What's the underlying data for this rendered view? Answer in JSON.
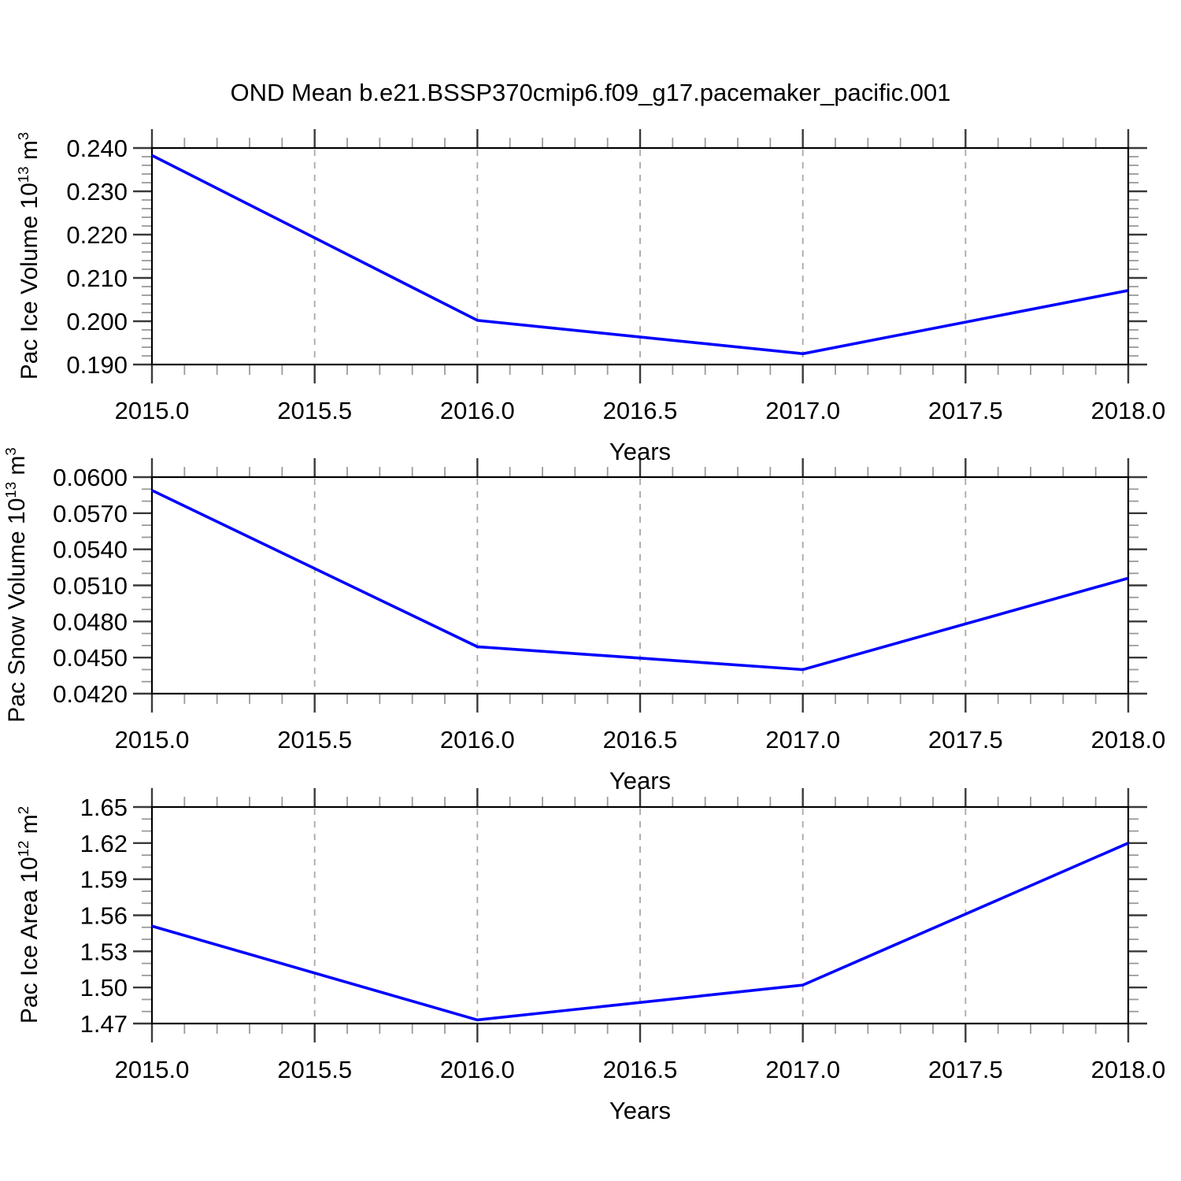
{
  "title": "OND Mean b.e21.BSSP370cmip6.f09_g17.pacemaker_pacific.001",
  "line_color": "#0000ff",
  "chart_data": [
    {
      "type": "line",
      "panel": 1,
      "ylabel": {
        "text": "Pac Ice Volume 10",
        "exp": "13",
        "unit": " m",
        "unit_exp": "3"
      },
      "xlabel": "Years",
      "x": [
        2015.0,
        2016.0,
        2017.0,
        2018.0
      ],
      "values": [
        0.2383,
        0.2002,
        0.1925,
        0.2071
      ],
      "xlim": [
        2015.0,
        2018.0
      ],
      "ylim": [
        0.19,
        0.24
      ],
      "xticks": [
        2015.0,
        2015.5,
        2016.0,
        2016.5,
        2017.0,
        2017.5,
        2018.0
      ],
      "xtick_labels": [
        "2015.0",
        "2015.5",
        "2016.0",
        "2016.5",
        "2017.0",
        "2017.5",
        "2018.0"
      ],
      "yticks": [
        0.19,
        0.2,
        0.21,
        0.22,
        0.23,
        0.24
      ],
      "ytick_labels": [
        "0.190",
        "0.200",
        "0.210",
        "0.220",
        "0.230",
        "0.240"
      ],
      "x_minor_step": 0.1,
      "y_minor_step": 0.002,
      "grid": "vertical-dashed-interior-majors",
      "legend": "none"
    },
    {
      "type": "line",
      "panel": 2,
      "ylabel": {
        "text": "Pac Snow Volume 10",
        "exp": "13",
        "unit": " m",
        "unit_exp": "3"
      },
      "xlabel": "Years",
      "x": [
        2015.0,
        2016.0,
        2017.0,
        2018.0
      ],
      "values": [
        0.0589,
        0.0459,
        0.044,
        0.0516
      ],
      "xlim": [
        2015.0,
        2018.0
      ],
      "ylim": [
        0.042,
        0.06
      ],
      "xticks": [
        2015.0,
        2015.5,
        2016.0,
        2016.5,
        2017.0,
        2017.5,
        2018.0
      ],
      "xtick_labels": [
        "2015.0",
        "2015.5",
        "2016.0",
        "2016.5",
        "2017.0",
        "2017.5",
        "2018.0"
      ],
      "yticks": [
        0.042,
        0.045,
        0.048,
        0.051,
        0.054,
        0.057,
        0.06
      ],
      "ytick_labels": [
        "0.0420",
        "0.0450",
        "0.0480",
        "0.0510",
        "0.0540",
        "0.0570",
        "0.0600"
      ],
      "x_minor_step": 0.1,
      "y_minor_step": 0.001,
      "grid": "vertical-dashed-interior-majors",
      "legend": "none"
    },
    {
      "type": "line",
      "panel": 3,
      "ylabel": {
        "text": "Pac Ice Area 10",
        "exp": "12",
        "unit": " m",
        "unit_exp": "2"
      },
      "xlabel": "Years",
      "x": [
        2015.0,
        2016.0,
        2017.0,
        2018.0
      ],
      "values": [
        1.551,
        1.473,
        1.502,
        1.62
      ],
      "xlim": [
        2015.0,
        2018.0
      ],
      "ylim": [
        1.47,
        1.65
      ],
      "xticks": [
        2015.0,
        2015.5,
        2016.0,
        2016.5,
        2017.0,
        2017.5,
        2018.0
      ],
      "xtick_labels": [
        "2015.0",
        "2015.5",
        "2016.0",
        "2016.5",
        "2017.0",
        "2017.5",
        "2018.0"
      ],
      "yticks": [
        1.47,
        1.5,
        1.53,
        1.56,
        1.59,
        1.62,
        1.65
      ],
      "ytick_labels": [
        "1.47",
        "1.50",
        "1.53",
        "1.56",
        "1.59",
        "1.62",
        "1.65"
      ],
      "x_minor_step": 0.1,
      "y_minor_step": 0.01,
      "grid": "vertical-dashed-interior-majors",
      "legend": "none"
    }
  ]
}
